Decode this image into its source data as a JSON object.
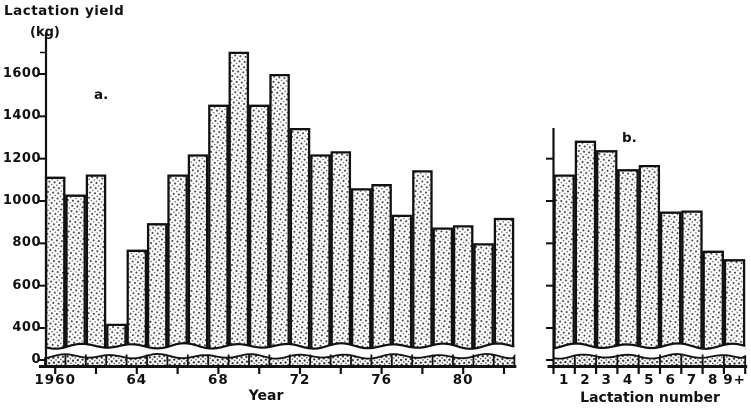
{
  "colors": {
    "ink": "#111111",
    "paper": "#ffffff"
  },
  "figure": {
    "y_axis_title_line1": "Lactation yield",
    "y_axis_title_line2": "(kg)",
    "panel_a_label": "a.",
    "panel_b_label": "b.",
    "panel_a_xlabel": "Year",
    "panel_b_xlabel": "Lactation number"
  },
  "chart_data": [
    {
      "panel": "a",
      "type": "bar",
      "title": "a.",
      "xlabel": "Year",
      "ylabel": "Lactation yield (kg)",
      "x": [
        1960,
        1961,
        1962,
        1963,
        1964,
        1965,
        1966,
        1967,
        1968,
        1969,
        1970,
        1971,
        1972,
        1973,
        1974,
        1975,
        1976,
        1977,
        1978,
        1979,
        1980,
        1981,
        1982
      ],
      "values": [
        1115,
        1030,
        1125,
        420,
        770,
        895,
        1125,
        1220,
        1455,
        1705,
        1455,
        1600,
        1345,
        1220,
        1235,
        1060,
        1080,
        935,
        1145,
        875,
        885,
        800,
        920
      ],
      "x_tick_labels": [
        {
          "year": 1960,
          "label": "1960"
        },
        {
          "year": 1964,
          "label": "64"
        },
        {
          "year": 1968,
          "label": "68"
        },
        {
          "year": 1972,
          "label": "72"
        },
        {
          "year": 1976,
          "label": "76"
        },
        {
          "year": 1980,
          "label": "80"
        }
      ],
      "x_minor_tick_step_years": 2,
      "y_ticks": [
        1600,
        1400,
        1200,
        1000,
        800,
        600,
        400,
        0
      ],
      "ylim": [
        0,
        1800
      ],
      "axis_break": true,
      "axis_break_below": 400,
      "grid": false,
      "fill": "stipple-dot-pattern"
    },
    {
      "panel": "b",
      "type": "bar",
      "title": "b.",
      "xlabel": "Lactation number",
      "ylabel": "Lactation yield (kg)",
      "categories": [
        "1",
        "2",
        "3",
        "4",
        "5",
        "6",
        "7",
        "8",
        "9+"
      ],
      "values": [
        1125,
        1285,
        1240,
        1150,
        1170,
        950,
        955,
        765,
        725
      ],
      "y_ticks": [
        1200,
        1000,
        800,
        600,
        400,
        0
      ],
      "ylim": [
        0,
        1800
      ],
      "axis_break": true,
      "axis_break_below": 400,
      "grid": false,
      "fill": "stipple-dot-pattern"
    }
  ]
}
